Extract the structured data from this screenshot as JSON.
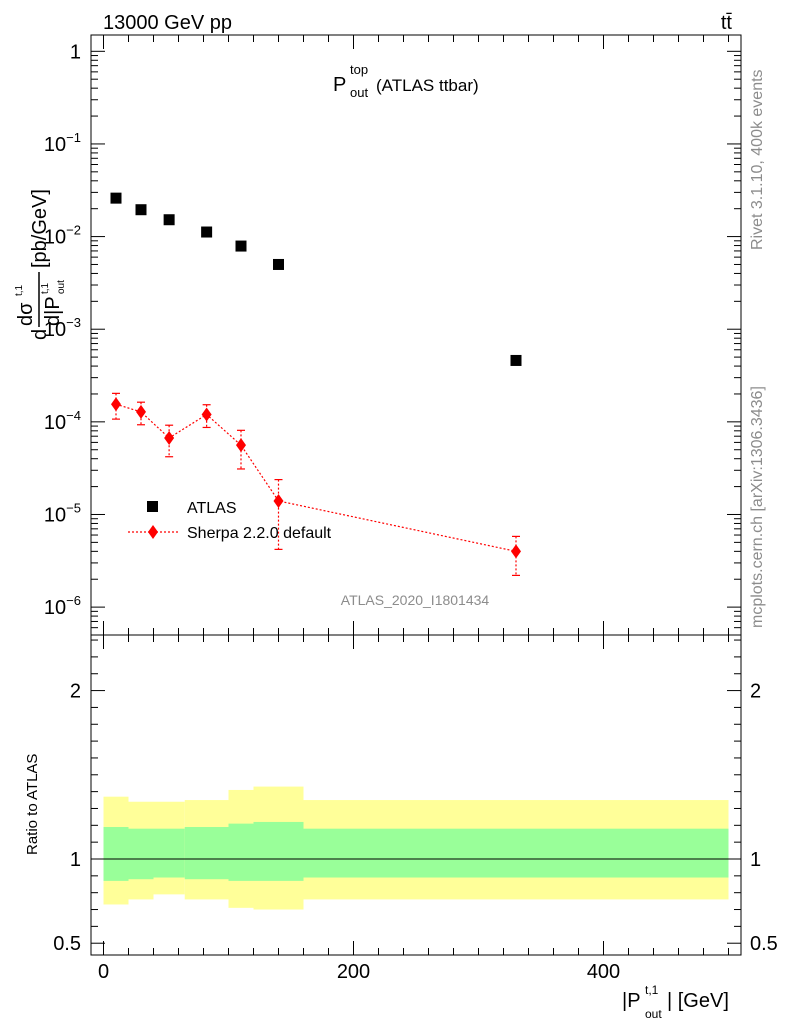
{
  "header": {
    "energy": "13000 GeV pp",
    "process": "tt̄"
  },
  "sidebar": {
    "rivet": "Rivet 3.1.10,  400k events",
    "mcplots": "mcplots.cern.ch [arXiv:1306.3436]"
  },
  "chart_data": [
    {
      "type": "scatter",
      "title_main": "P",
      "title_sup": "top",
      "title_sub": "out",
      "title_rest": " (ATLAS ttbar)",
      "ylabel": "dσ^{t,1}/d|P^{t,1}_{out}| [pb/GeV]",
      "ylabel_parts": {
        "d": "d",
        "sigma": "dσ",
        "sigma_sup": "t,1",
        "den": "d|P",
        "den_sub": "out",
        "den_sup": "t,1",
        "unit": "[pb/GeV]"
      },
      "yscale": "log",
      "ylim": [
        5e-07,
        1.5
      ],
      "xlim": [
        -10,
        510
      ],
      "ytick_labels": [
        {
          "v": 1,
          "m": "1",
          "e": ""
        },
        {
          "v": 0.1,
          "m": "10",
          "e": "−1"
        },
        {
          "v": 0.01,
          "m": "10",
          "e": "−2"
        },
        {
          "v": 0.001,
          "m": "10",
          "e": "−3"
        },
        {
          "v": 0.0001,
          "m": "10",
          "e": "−4"
        },
        {
          "v": 1e-05,
          "m": "10",
          "e": "−5"
        },
        {
          "v": 1e-06,
          "m": "10",
          "e": "−6"
        }
      ],
      "watermark": "ATLAS_2020_I1801434",
      "legend": {
        "position": "lower-left",
        "entries": [
          "ATLAS",
          "Sherpa 2.2.0 default"
        ]
      },
      "series": [
        {
          "name": "ATLAS",
          "marker": "square",
          "color": "#000000",
          "x": [
            10,
            30,
            52.5,
            82.5,
            110,
            140,
            330
          ],
          "y": [
            0.026,
            0.0195,
            0.0152,
            0.0112,
            0.0079,
            0.005,
            0.00046
          ],
          "yerr_lo": [
            0,
            0,
            0,
            0,
            0,
            0,
            0
          ],
          "yerr_hi": [
            0,
            0,
            0,
            0,
            0,
            0,
            0
          ]
        },
        {
          "name": "Sherpa 2.2.0 default",
          "marker": "diamond",
          "color": "#ff0000",
          "linestyle": "dotted",
          "x": [
            10,
            30,
            52.5,
            82.5,
            110,
            140,
            330
          ],
          "y": [
            0.000155,
            0.000128,
            6.7e-05,
            0.00012,
            5.6e-05,
            1.4e-05,
            4e-06
          ],
          "yerr_lo": [
            4.8e-05,
            3.5e-05,
            2.5e-05,
            3.3e-05,
            2.5e-05,
            9.8e-06,
            1.8e-06
          ],
          "yerr_hi": [
            4.8e-05,
            3.5e-05,
            2.5e-05,
            3.3e-05,
            2.5e-05,
            9.8e-06,
            1.8e-06
          ]
        }
      ]
    },
    {
      "type": "area",
      "ylabel": "Ratio to ATLAS",
      "xlabel": "|P^{t,1}_{out}| [GeV]",
      "xlabel_parts": {
        "pre": "|P",
        "sup": "t,1",
        "sub": "out",
        "post": "| [GeV]"
      },
      "xlim": [
        -10,
        510
      ],
      "ylim": [
        0.43,
        2.33
      ],
      "xtick_labels": [
        {
          "v": 0,
          "t": "0"
        },
        {
          "v": 200,
          "t": "200"
        },
        {
          "v": 400,
          "t": "400"
        }
      ],
      "ytick_labels": [
        {
          "v": 0.5,
          "t": "0.5"
        },
        {
          "v": 1,
          "t": "1"
        },
        {
          "v": 2,
          "t": "2"
        }
      ],
      "bins": [
        {
          "lo": 0,
          "hi": 20,
          "inner": [
            0.87,
            1.19
          ],
          "outer": [
            0.73,
            1.37
          ]
        },
        {
          "lo": 20,
          "hi": 40,
          "inner": [
            0.88,
            1.18
          ],
          "outer": [
            0.76,
            1.34
          ]
        },
        {
          "lo": 40,
          "hi": 65,
          "inner": [
            0.89,
            1.18
          ],
          "outer": [
            0.79,
            1.34
          ]
        },
        {
          "lo": 65,
          "hi": 100,
          "inner": [
            0.88,
            1.19
          ],
          "outer": [
            0.76,
            1.35
          ]
        },
        {
          "lo": 100,
          "hi": 120,
          "inner": [
            0.87,
            1.21
          ],
          "outer": [
            0.71,
            1.41
          ]
        },
        {
          "lo": 120,
          "hi": 160,
          "inner": [
            0.87,
            1.22
          ],
          "outer": [
            0.7,
            1.43
          ]
        },
        {
          "lo": 160,
          "hi": 500,
          "inner": [
            0.89,
            1.18
          ],
          "outer": [
            0.76,
            1.35
          ]
        }
      ],
      "inner_color": "#99ff99",
      "outer_color": "#ffff99",
      "reference_line": 1
    }
  ]
}
